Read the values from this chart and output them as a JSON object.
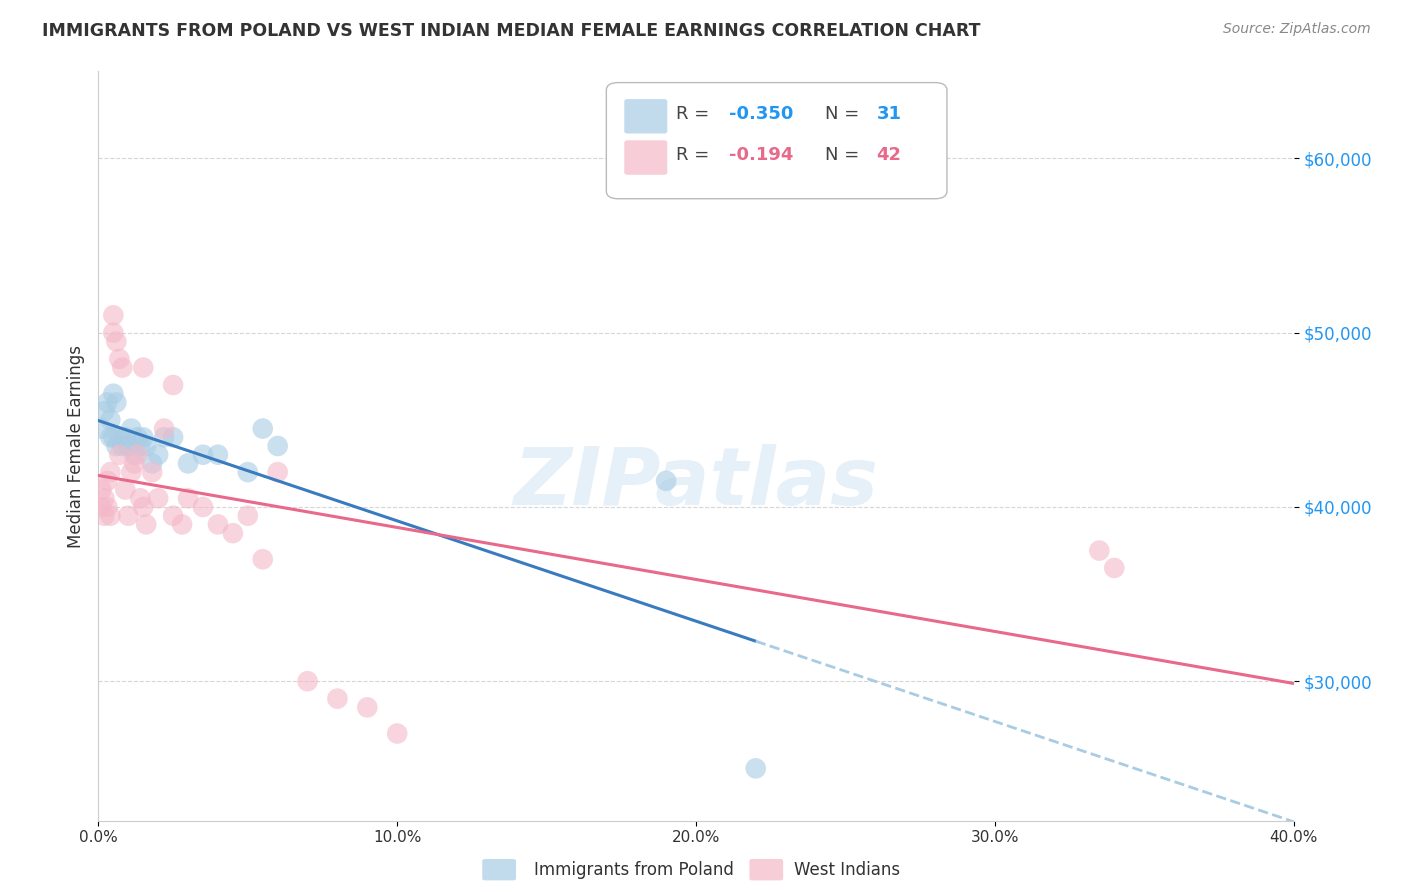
{
  "title": "IMMIGRANTS FROM POLAND VS WEST INDIAN MEDIAN FEMALE EARNINGS CORRELATION CHART",
  "source": "Source: ZipAtlas.com",
  "ylabel": "Median Female Earnings",
  "ytick_labels": [
    "$30,000",
    "$40,000",
    "$50,000",
    "$60,000"
  ],
  "ytick_values": [
    30000,
    40000,
    50000,
    60000
  ],
  "xlim": [
    0.0,
    0.4
  ],
  "ylim": [
    22000,
    65000
  ],
  "watermark": "ZIPatlas",
  "blue_color": "#a8cce4",
  "pink_color": "#f4b8c8",
  "blue_line_color": "#3a7bbf",
  "pink_line_color": "#e8698a",
  "dashed_line_color": "#a8cce4",
  "background_color": "#ffffff",
  "grid_color": "#cccccc",
  "poland_scatter_x": [
    0.001,
    0.002,
    0.003,
    0.004,
    0.004,
    0.005,
    0.005,
    0.006,
    0.006,
    0.007,
    0.008,
    0.009,
    0.01,
    0.011,
    0.012,
    0.013,
    0.014,
    0.015,
    0.016,
    0.018,
    0.02,
    0.022,
    0.025,
    0.03,
    0.035,
    0.04,
    0.05,
    0.055,
    0.06,
    0.19,
    0.22
  ],
  "poland_scatter_y": [
    44500,
    45500,
    46000,
    44000,
    45000,
    44000,
    46500,
    43500,
    46000,
    44000,
    43500,
    44000,
    43500,
    44500,
    43000,
    44000,
    43500,
    44000,
    43500,
    42500,
    43000,
    44000,
    44000,
    42500,
    43000,
    43000,
    42000,
    44500,
    43500,
    41500,
    25000
  ],
  "westindian_scatter_x": [
    0.001,
    0.001,
    0.002,
    0.002,
    0.003,
    0.003,
    0.004,
    0.004,
    0.005,
    0.005,
    0.006,
    0.007,
    0.007,
    0.008,
    0.009,
    0.01,
    0.011,
    0.012,
    0.013,
    0.014,
    0.015,
    0.015,
    0.016,
    0.018,
    0.02,
    0.022,
    0.025,
    0.025,
    0.028,
    0.03,
    0.035,
    0.04,
    0.045,
    0.05,
    0.055,
    0.06,
    0.07,
    0.08,
    0.09,
    0.1,
    0.335,
    0.34
  ],
  "westindian_scatter_y": [
    40000,
    41000,
    39500,
    40500,
    40000,
    41500,
    39500,
    42000,
    51000,
    50000,
    49500,
    48500,
    43000,
    48000,
    41000,
    39500,
    42000,
    42500,
    43000,
    40500,
    40000,
    48000,
    39000,
    42000,
    40500,
    44500,
    39500,
    47000,
    39000,
    40500,
    40000,
    39000,
    38500,
    39500,
    37000,
    42000,
    30000,
    29000,
    28500,
    27000,
    37500,
    36500
  ],
  "legend_r1_label": "R = ",
  "legend_r1_val": "-0.350",
  "legend_n1_label": "N = ",
  "legend_n1_val": "31",
  "legend_r2_label": "R =  ",
  "legend_r2_val": "-0.194",
  "legend_n2_label": "N = ",
  "legend_n2_val": "42",
  "blue_text_color": "#2196f3",
  "pink_text_color": "#e8698a",
  "dark_text_color": "#333333",
  "source_text_color": "#888888"
}
